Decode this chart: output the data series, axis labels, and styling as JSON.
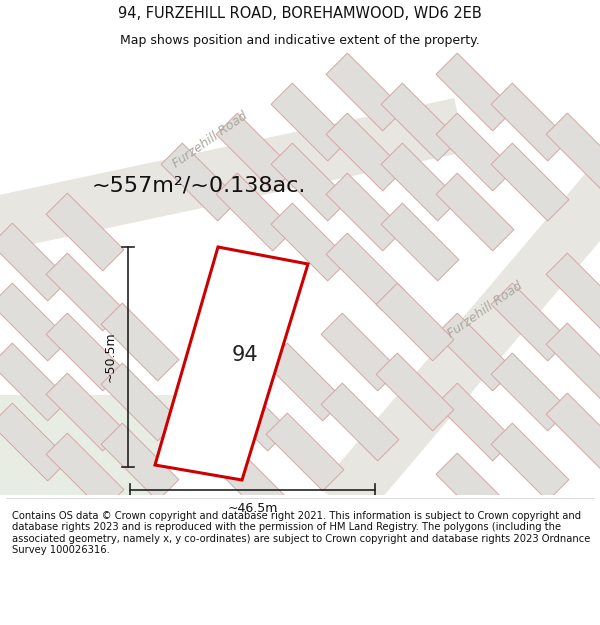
{
  "title": "94, FURZEHILL ROAD, BOREHAMWOOD, WD6 2EB",
  "subtitle": "Map shows position and indicative extent of the property.",
  "area_label": "~557m²/~0.138ac.",
  "property_number": "94",
  "dim_height": "~50.5m",
  "dim_width": "~46.5m",
  "road_label_1": "Furzehill Road",
  "road_label_2": "Furzehill Road",
  "footer": "Contains OS data © Crown copyright and database right 2021. This information is subject to Crown copyright and database rights 2023 and is reproduced with the permission of HM Land Registry. The polygons (including the associated geometry, namely x, y co-ordinates) are subject to Crown copyright and database rights 2023 Ordnance Survey 100026316.",
  "map_bg": "#f7f5f2",
  "road_fill": "#e8e6e0",
  "block_fill": "#e0deda",
  "block_edge": "#d4a8a4",
  "green_fill": "#e8ede4",
  "prop_fill": "#ffffff",
  "prop_edge": "#cc0000",
  "prop_lw": 2.2,
  "title_fs": 10.5,
  "subtitle_fs": 9,
  "area_fs": 16,
  "dim_fs": 9,
  "prop_num_fs": 15,
  "road_label_fs": 9,
  "footer_fs": 7.2,
  "road_label_color": "#aaa89e",
  "dim_color": "#222222",
  "text_color": "#111111"
}
